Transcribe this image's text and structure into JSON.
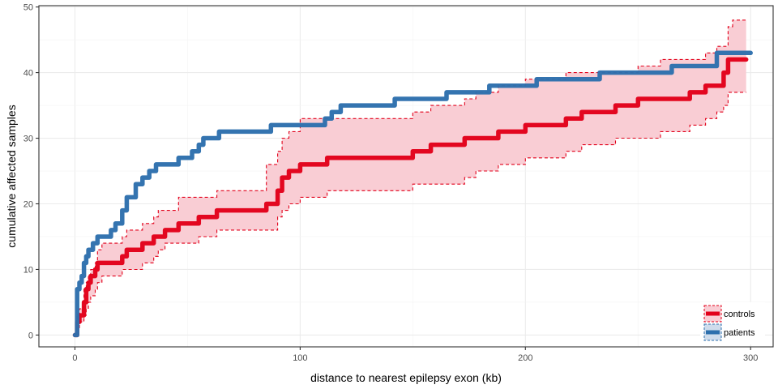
{
  "chart_data": {
    "type": "line",
    "xlabel": "distance to nearest epilepsy exon (kb)",
    "ylabel": "cumulative affected samples",
    "xlim": [
      -16,
      310
    ],
    "ylim": [
      -1.8,
      50.2
    ],
    "x_ticks": [
      0,
      100,
      200,
      300
    ],
    "y_ticks": [
      0,
      10,
      20,
      30,
      40,
      50
    ],
    "grid": true,
    "legend_position": "bottom-right",
    "series": [
      {
        "name": "controls",
        "color": "#e2001a",
        "fill": "#f9cdd4",
        "style": "step line with dashed ribbon",
        "x": [
          0,
          1,
          2,
          4,
          5,
          6,
          7,
          9,
          10,
          12,
          21,
          23,
          30,
          35,
          37,
          40,
          46,
          55,
          63,
          85,
          90,
          92,
          95,
          100,
          112,
          150,
          158,
          173,
          178,
          188,
          200,
          210,
          218,
          225,
          240,
          250,
          260,
          273,
          280,
          285,
          288,
          290,
          292,
          298
        ],
        "y": [
          0,
          2,
          3,
          5,
          7,
          8,
          9,
          10,
          11,
          11,
          12,
          13,
          14,
          15,
          15,
          16,
          17,
          18,
          19,
          20,
          22,
          24,
          25,
          26,
          27,
          28,
          29,
          30,
          30,
          31,
          32,
          32,
          33,
          34,
          35,
          36,
          36,
          37,
          38,
          38,
          40,
          42,
          42,
          42
        ],
        "upper": [
          1,
          3,
          4,
          7,
          8,
          9,
          10,
          11,
          13,
          14,
          15,
          16,
          17,
          18,
          19,
          19,
          21,
          21,
          22,
          26,
          28,
          30,
          31,
          33,
          33,
          34,
          35,
          36,
          37,
          38,
          39,
          39,
          40,
          40,
          40,
          41,
          42,
          42,
          43,
          44,
          44,
          47,
          48,
          48
        ],
        "lower": [
          0,
          1,
          2,
          3,
          4,
          5,
          6,
          7,
          8,
          9,
          10,
          10,
          11,
          12,
          13,
          14,
          14,
          15,
          16,
          16,
          18,
          19,
          20,
          21,
          22,
          23,
          23,
          24,
          25,
          26,
          27,
          27,
          28,
          29,
          30,
          30,
          31,
          32,
          33,
          34,
          35,
          37,
          37,
          37
        ]
      },
      {
        "name": "patients",
        "color": "#2d6fad",
        "fill": "#cfdcec",
        "style": "step line",
        "x": [
          0,
          1,
          2,
          3,
          4,
          5,
          6,
          8,
          10,
          13,
          16,
          18,
          21,
          23,
          27,
          30,
          33,
          36,
          39,
          46,
          52,
          55,
          57,
          62,
          64,
          68,
          73,
          87,
          100,
          111,
          114,
          118,
          142,
          165,
          184,
          205,
          233,
          265,
          285,
          290,
          300
        ],
        "y": [
          0,
          7,
          8,
          9,
          11,
          12,
          13,
          14,
          15,
          15,
          16,
          17,
          19,
          21,
          23,
          24,
          25,
          26,
          26,
          27,
          28,
          29,
          30,
          30,
          31,
          31,
          31,
          32,
          32,
          33,
          34,
          35,
          36,
          37,
          38,
          39,
          40,
          41,
          43,
          43,
          43
        ]
      }
    ]
  }
}
